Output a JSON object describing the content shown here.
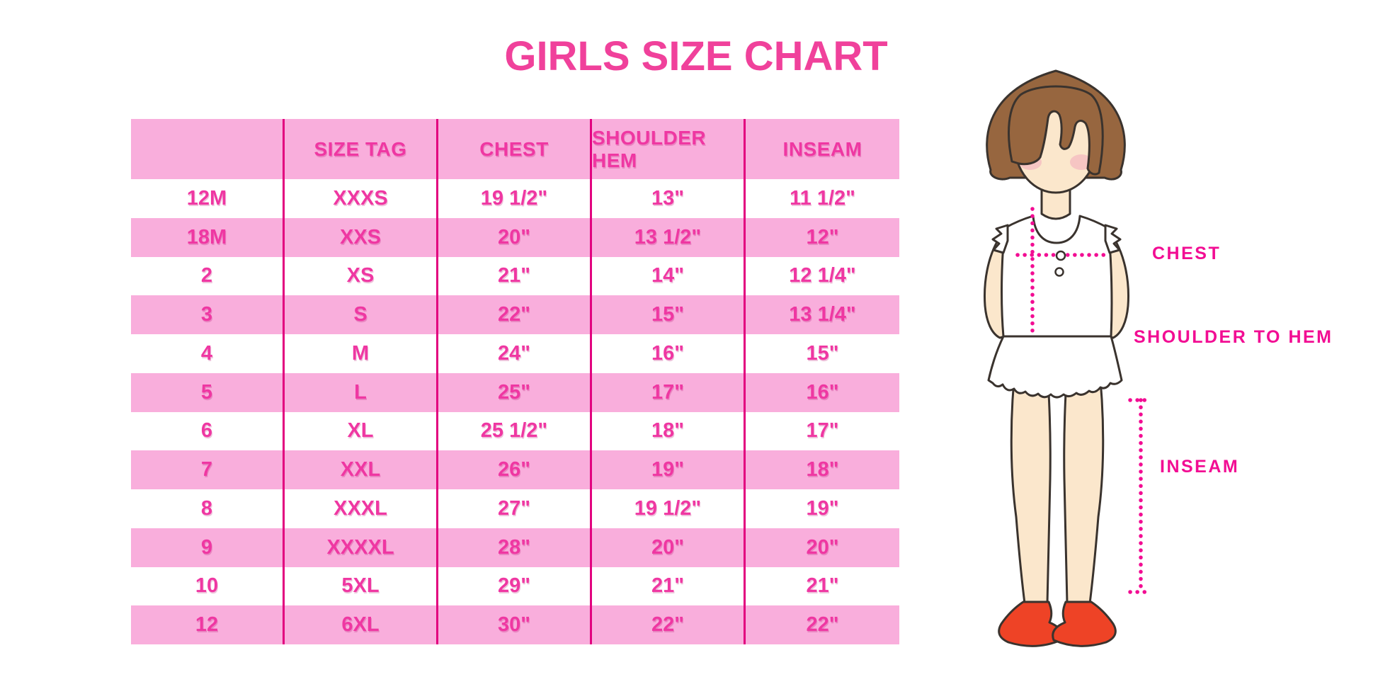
{
  "title": "GIRLS SIZE CHART",
  "table": {
    "columns": [
      "",
      "SIZE TAG",
      "CHEST",
      "SHOULDER HEM",
      "INSEAM"
    ],
    "rows": [
      [
        "12M",
        "XXXS",
        "19 1/2\"",
        "13\"",
        "11 1/2\""
      ],
      [
        "18M",
        "XXS",
        "20\"",
        "13 1/2\"",
        "12\""
      ],
      [
        "2",
        "XS",
        "21\"",
        "14\"",
        "12 1/4\""
      ],
      [
        "3",
        "S",
        "22\"",
        "15\"",
        "13 1/4\""
      ],
      [
        "4",
        "M",
        "24\"",
        "16\"",
        "15\""
      ],
      [
        "5",
        "L",
        "25\"",
        "17\"",
        "16\""
      ],
      [
        "6",
        "XL",
        "25 1/2\"",
        "18\"",
        "17\""
      ],
      [
        "7",
        "XXL",
        "26\"",
        "19\"",
        "18\""
      ],
      [
        "8",
        "XXXL",
        "27\"",
        "19 1/2\"",
        "19\""
      ],
      [
        "9",
        "XXXXL",
        "28\"",
        "20\"",
        "20\""
      ],
      [
        "10",
        "5XL",
        "29\"",
        "21\"",
        "21\""
      ],
      [
        "12",
        "6XL",
        "30\"",
        "22\"",
        "22\""
      ]
    ]
  },
  "figure_labels": {
    "chest": "CHEST",
    "shoulder_to_hem": "SHOULDER TO HEM",
    "inseam": "INSEAM"
  },
  "colors": {
    "band_pink": "#F9AEDC",
    "divider_magenta": "#E2007F",
    "table_text_pink": "#EF37A2",
    "title_pink": "#F0419B",
    "label_magenta": "#F20D93",
    "hair_brown": "#97663F",
    "skin": "#FBE7CC",
    "blush": "#F3A9BC",
    "shoe_red": "#EE4326"
  },
  "chart_data": {
    "type": "table",
    "title": "GIRLS SIZE CHART",
    "columns": [
      "",
      "SIZE TAG",
      "CHEST",
      "SHOULDER HEM",
      "INSEAM"
    ],
    "rows": [
      [
        "12M",
        "XXXS",
        "19 1/2\"",
        "13\"",
        "11 1/2\""
      ],
      [
        "18M",
        "XXS",
        "20\"",
        "13 1/2\"",
        "12\""
      ],
      [
        "2",
        "XS",
        "21\"",
        "14\"",
        "12 1/4\""
      ],
      [
        "3",
        "S",
        "22\"",
        "15\"",
        "13 1/4\""
      ],
      [
        "4",
        "M",
        "24\"",
        "16\"",
        "15\""
      ],
      [
        "5",
        "L",
        "25\"",
        "17\"",
        "16\""
      ],
      [
        "6",
        "XL",
        "25 1/2\"",
        "18\"",
        "17\""
      ],
      [
        "7",
        "XXL",
        "26\"",
        "19\"",
        "18\""
      ],
      [
        "8",
        "XXXL",
        "27\"",
        "19 1/2\"",
        "19\""
      ],
      [
        "9",
        "XXXXL",
        "28\"",
        "20\"",
        "20\""
      ],
      [
        "10",
        "5XL",
        "29\"",
        "21\"",
        "21\""
      ],
      [
        "12",
        "6XL",
        "30\"",
        "22\"",
        "22\""
      ]
    ],
    "legend_position": "none",
    "grid": "vertical magenta dividers only, alternating pink/white row bands"
  }
}
